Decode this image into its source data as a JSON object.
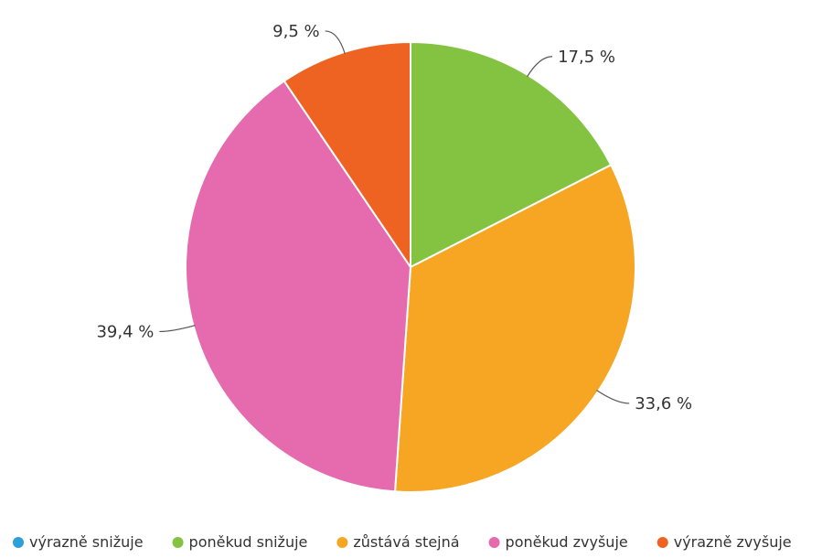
{
  "chart_data": {
    "type": "pie",
    "start": "top",
    "direction": "clockwise",
    "slices": [
      {
        "name": "výrazně snižuje",
        "value": 0,
        "color": "#2E9FD8",
        "label": ""
      },
      {
        "name": "poněkud snižuje",
        "value": 17.5,
        "color": "#83C341",
        "label": "17,5 %"
      },
      {
        "name": "zůstává stejná",
        "value": 33.6,
        "color": "#F6A623",
        "label": "33,6 %"
      },
      {
        "name": "poněkud zvyšuje",
        "value": 39.4,
        "color": "#E56AAE",
        "label": "39,4 %"
      },
      {
        "name": "výrazně zvyšuje",
        "value": 9.5,
        "color": "#EE6321",
        "label": "9,5 %"
      }
    ],
    "legend_position": "bottom"
  }
}
